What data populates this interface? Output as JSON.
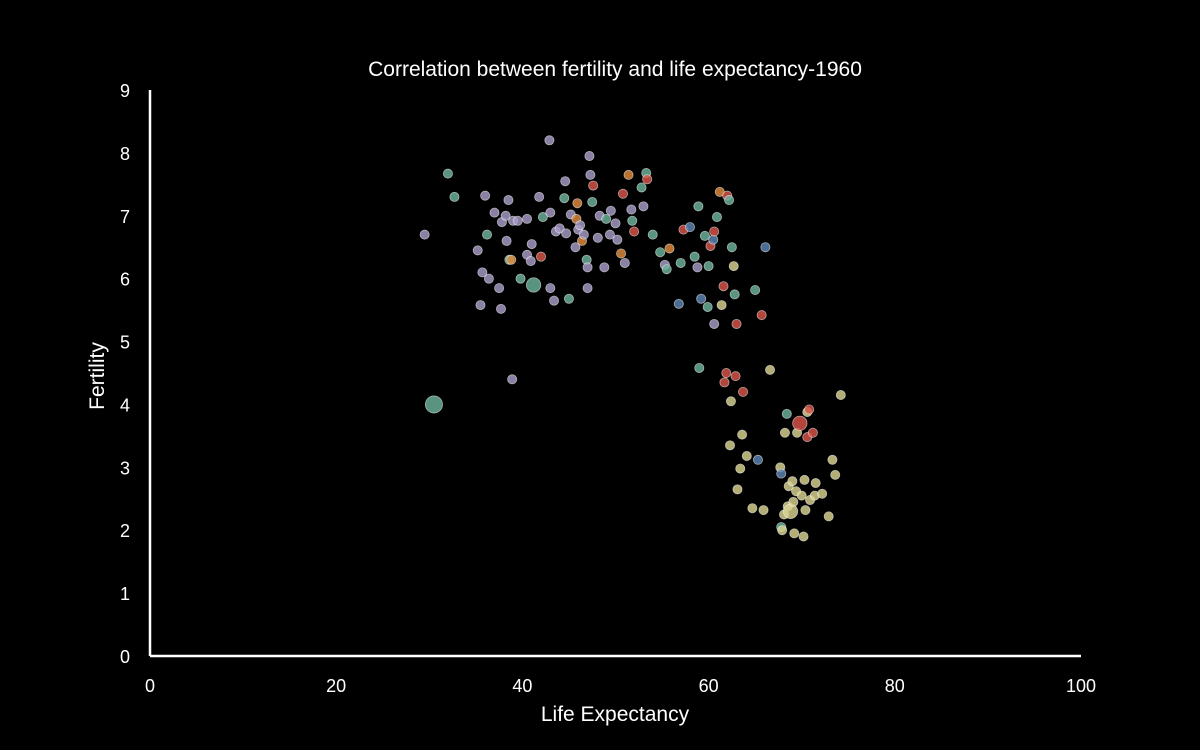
{
  "chart_data": {
    "type": "scatter",
    "title": "Correlation between fertility and life expectancy-1960",
    "xlabel": "Life Expectancy",
    "ylabel": "Fertility",
    "xlim": [
      0,
      100
    ],
    "ylim": [
      0,
      9
    ],
    "xticks": [
      "0",
      "20",
      "40",
      "60",
      "80",
      "100"
    ],
    "yticks": [
      "0",
      "1",
      "2",
      "3",
      "4",
      "5",
      "6",
      "7",
      "8",
      "9"
    ],
    "grid": false,
    "background": "#000000",
    "palette": {
      "purple": "#a89cc8",
      "teal": "#6cb59d",
      "red": "#d9564a",
      "orange": "#e08c3e",
      "yellow": "#d9d48f",
      "blue": "#5d86b5"
    },
    "points": [
      {
        "x": 29.5,
        "y": 6.7,
        "c": "purple",
        "s": 1
      },
      {
        "x": 30.5,
        "y": 4.0,
        "c": "teal",
        "s": 3
      },
      {
        "x": 32.0,
        "y": 7.67,
        "c": "teal",
        "s": 1
      },
      {
        "x": 32.7,
        "y": 7.3,
        "c": "teal",
        "s": 1
      },
      {
        "x": 35.2,
        "y": 6.45,
        "c": "purple",
        "s": 1
      },
      {
        "x": 35.5,
        "y": 5.58,
        "c": "purple",
        "s": 1
      },
      {
        "x": 35.7,
        "y": 6.1,
        "c": "purple",
        "s": 1
      },
      {
        "x": 36.0,
        "y": 7.32,
        "c": "purple",
        "s": 1
      },
      {
        "x": 36.2,
        "y": 6.7,
        "c": "teal",
        "s": 1
      },
      {
        "x": 36.4,
        "y": 6.0,
        "c": "purple",
        "s": 1
      },
      {
        "x": 37.0,
        "y": 7.05,
        "c": "purple",
        "s": 1
      },
      {
        "x": 37.5,
        "y": 5.85,
        "c": "purple",
        "s": 1
      },
      {
        "x": 37.7,
        "y": 5.52,
        "c": "purple",
        "s": 1
      },
      {
        "x": 37.8,
        "y": 6.9,
        "c": "purple",
        "s": 1
      },
      {
        "x": 38.2,
        "y": 7.0,
        "c": "purple",
        "s": 1
      },
      {
        "x": 38.3,
        "y": 6.6,
        "c": "purple",
        "s": 1
      },
      {
        "x": 38.5,
        "y": 7.25,
        "c": "purple",
        "s": 1
      },
      {
        "x": 38.6,
        "y": 6.3,
        "c": "teal",
        "s": 1
      },
      {
        "x": 38.8,
        "y": 6.3,
        "c": "orange",
        "s": 1
      },
      {
        "x": 38.9,
        "y": 4.4,
        "c": "purple",
        "s": 1
      },
      {
        "x": 39.0,
        "y": 6.92,
        "c": "purple",
        "s": 1
      },
      {
        "x": 39.5,
        "y": 6.92,
        "c": "purple",
        "s": 1
      },
      {
        "x": 39.8,
        "y": 6.0,
        "c": "teal",
        "s": 1
      },
      {
        "x": 40.5,
        "y": 6.38,
        "c": "purple",
        "s": 1
      },
      {
        "x": 40.5,
        "y": 6.95,
        "c": "purple",
        "s": 1
      },
      {
        "x": 40.9,
        "y": 6.28,
        "c": "purple",
        "s": 1
      },
      {
        "x": 41.0,
        "y": 6.55,
        "c": "purple",
        "s": 1
      },
      {
        "x": 41.2,
        "y": 5.9,
        "c": "teal",
        "s": 2
      },
      {
        "x": 41.8,
        "y": 7.3,
        "c": "purple",
        "s": 1
      },
      {
        "x": 42.0,
        "y": 6.35,
        "c": "red",
        "s": 1
      },
      {
        "x": 42.2,
        "y": 6.98,
        "c": "teal",
        "s": 1
      },
      {
        "x": 42.9,
        "y": 8.2,
        "c": "purple",
        "s": 1
      },
      {
        "x": 43.0,
        "y": 5.85,
        "c": "purple",
        "s": 1
      },
      {
        "x": 43.0,
        "y": 7.05,
        "c": "purple",
        "s": 1
      },
      {
        "x": 43.4,
        "y": 5.65,
        "c": "purple",
        "s": 1
      },
      {
        "x": 43.6,
        "y": 6.75,
        "c": "purple",
        "s": 1
      },
      {
        "x": 44.0,
        "y": 6.8,
        "c": "purple",
        "s": 1
      },
      {
        "x": 44.5,
        "y": 7.28,
        "c": "teal",
        "s": 1
      },
      {
        "x": 44.6,
        "y": 7.55,
        "c": "purple",
        "s": 1
      },
      {
        "x": 44.7,
        "y": 6.72,
        "c": "purple",
        "s": 1
      },
      {
        "x": 45.0,
        "y": 5.68,
        "c": "teal",
        "s": 1
      },
      {
        "x": 45.2,
        "y": 7.02,
        "c": "purple",
        "s": 1
      },
      {
        "x": 45.7,
        "y": 6.5,
        "c": "purple",
        "s": 1
      },
      {
        "x": 45.8,
        "y": 6.95,
        "c": "orange",
        "s": 1
      },
      {
        "x": 45.9,
        "y": 7.2,
        "c": "orange",
        "s": 1
      },
      {
        "x": 46.0,
        "y": 6.78,
        "c": "purple",
        "s": 1
      },
      {
        "x": 46.2,
        "y": 6.85,
        "c": "purple",
        "s": 1
      },
      {
        "x": 46.4,
        "y": 6.6,
        "c": "orange",
        "s": 1
      },
      {
        "x": 46.6,
        "y": 6.7,
        "c": "purple",
        "s": 1
      },
      {
        "x": 46.9,
        "y": 6.3,
        "c": "teal",
        "s": 1
      },
      {
        "x": 47.0,
        "y": 6.18,
        "c": "purple",
        "s": 1
      },
      {
        "x": 47.0,
        "y": 5.85,
        "c": "purple",
        "s": 1
      },
      {
        "x": 47.2,
        "y": 7.95,
        "c": "purple",
        "s": 1
      },
      {
        "x": 47.3,
        "y": 7.65,
        "c": "purple",
        "s": 1
      },
      {
        "x": 47.5,
        "y": 7.22,
        "c": "teal",
        "s": 1
      },
      {
        "x": 47.6,
        "y": 7.48,
        "c": "red",
        "s": 1
      },
      {
        "x": 48.1,
        "y": 6.65,
        "c": "purple",
        "s": 1
      },
      {
        "x": 48.3,
        "y": 7.0,
        "c": "purple",
        "s": 1
      },
      {
        "x": 48.8,
        "y": 6.18,
        "c": "purple",
        "s": 1
      },
      {
        "x": 49.0,
        "y": 6.95,
        "c": "teal",
        "s": 1
      },
      {
        "x": 49.4,
        "y": 6.7,
        "c": "purple",
        "s": 1
      },
      {
        "x": 49.5,
        "y": 7.08,
        "c": "purple",
        "s": 1
      },
      {
        "x": 50.0,
        "y": 6.88,
        "c": "purple",
        "s": 1
      },
      {
        "x": 50.2,
        "y": 6.62,
        "c": "purple",
        "s": 1
      },
      {
        "x": 50.6,
        "y": 6.4,
        "c": "orange",
        "s": 1
      },
      {
        "x": 50.8,
        "y": 7.35,
        "c": "red",
        "s": 1
      },
      {
        "x": 51.0,
        "y": 6.25,
        "c": "purple",
        "s": 1
      },
      {
        "x": 51.4,
        "y": 7.65,
        "c": "orange",
        "s": 1
      },
      {
        "x": 51.7,
        "y": 7.1,
        "c": "purple",
        "s": 1
      },
      {
        "x": 51.8,
        "y": 6.92,
        "c": "teal",
        "s": 1
      },
      {
        "x": 52.0,
        "y": 6.75,
        "c": "red",
        "s": 1
      },
      {
        "x": 52.8,
        "y": 7.45,
        "c": "teal",
        "s": 1
      },
      {
        "x": 53.0,
        "y": 7.15,
        "c": "purple",
        "s": 1
      },
      {
        "x": 53.3,
        "y": 7.68,
        "c": "teal",
        "s": 1
      },
      {
        "x": 53.4,
        "y": 7.58,
        "c": "red",
        "s": 1
      },
      {
        "x": 54.0,
        "y": 6.7,
        "c": "teal",
        "s": 1
      },
      {
        "x": 54.8,
        "y": 6.42,
        "c": "teal",
        "s": 1
      },
      {
        "x": 55.3,
        "y": 6.22,
        "c": "purple",
        "s": 1
      },
      {
        "x": 55.5,
        "y": 6.15,
        "c": "teal",
        "s": 1
      },
      {
        "x": 55.8,
        "y": 6.48,
        "c": "orange",
        "s": 1
      },
      {
        "x": 56.8,
        "y": 5.6,
        "c": "blue",
        "s": 1
      },
      {
        "x": 57.0,
        "y": 6.25,
        "c": "teal",
        "s": 1
      },
      {
        "x": 57.3,
        "y": 6.78,
        "c": "red",
        "s": 1
      },
      {
        "x": 58.0,
        "y": 6.82,
        "c": "blue",
        "s": 1
      },
      {
        "x": 58.5,
        "y": 6.35,
        "c": "teal",
        "s": 1
      },
      {
        "x": 58.8,
        "y": 6.18,
        "c": "purple",
        "s": 1
      },
      {
        "x": 58.9,
        "y": 7.15,
        "c": "teal",
        "s": 1
      },
      {
        "x": 59.0,
        "y": 4.58,
        "c": "teal",
        "s": 1
      },
      {
        "x": 59.2,
        "y": 5.68,
        "c": "blue",
        "s": 1
      },
      {
        "x": 59.6,
        "y": 6.68,
        "c": "teal",
        "s": 1
      },
      {
        "x": 59.9,
        "y": 5.55,
        "c": "teal",
        "s": 1
      },
      {
        "x": 60.0,
        "y": 6.2,
        "c": "teal",
        "s": 1
      },
      {
        "x": 60.2,
        "y": 6.52,
        "c": "red",
        "s": 1
      },
      {
        "x": 60.5,
        "y": 6.62,
        "c": "blue",
        "s": 1
      },
      {
        "x": 60.6,
        "y": 5.28,
        "c": "purple",
        "s": 1
      },
      {
        "x": 60.6,
        "y": 6.75,
        "c": "red",
        "s": 1
      },
      {
        "x": 60.9,
        "y": 6.98,
        "c": "teal",
        "s": 1
      },
      {
        "x": 61.2,
        "y": 7.38,
        "c": "orange",
        "s": 1
      },
      {
        "x": 61.4,
        "y": 5.58,
        "c": "yellow",
        "s": 1
      },
      {
        "x": 61.6,
        "y": 5.88,
        "c": "red",
        "s": 1
      },
      {
        "x": 61.7,
        "y": 4.35,
        "c": "red",
        "s": 1
      },
      {
        "x": 61.9,
        "y": 4.5,
        "c": "red",
        "s": 1
      },
      {
        "x": 62.0,
        "y": 7.32,
        "c": "red",
        "s": 1
      },
      {
        "x": 62.2,
        "y": 7.25,
        "c": "teal",
        "s": 1
      },
      {
        "x": 62.3,
        "y": 3.35,
        "c": "yellow",
        "s": 1
      },
      {
        "x": 62.4,
        "y": 4.05,
        "c": "yellow",
        "s": 1
      },
      {
        "x": 62.5,
        "y": 6.5,
        "c": "teal",
        "s": 1
      },
      {
        "x": 62.7,
        "y": 6.2,
        "c": "yellow",
        "s": 1
      },
      {
        "x": 62.8,
        "y": 5.75,
        "c": "teal",
        "s": 1
      },
      {
        "x": 62.9,
        "y": 4.45,
        "c": "red",
        "s": 1
      },
      {
        "x": 63.0,
        "y": 5.28,
        "c": "red",
        "s": 1
      },
      {
        "x": 63.1,
        "y": 2.65,
        "c": "yellow",
        "s": 1
      },
      {
        "x": 63.4,
        "y": 2.98,
        "c": "yellow",
        "s": 1
      },
      {
        "x": 63.6,
        "y": 3.52,
        "c": "yellow",
        "s": 1
      },
      {
        "x": 63.7,
        "y": 4.2,
        "c": "red",
        "s": 1
      },
      {
        "x": 64.1,
        "y": 3.18,
        "c": "yellow",
        "s": 1
      },
      {
        "x": 64.7,
        "y": 2.35,
        "c": "yellow",
        "s": 1
      },
      {
        "x": 65.0,
        "y": 5.82,
        "c": "teal",
        "s": 1
      },
      {
        "x": 65.3,
        "y": 3.12,
        "c": "blue",
        "s": 1
      },
      {
        "x": 65.7,
        "y": 5.42,
        "c": "red",
        "s": 1
      },
      {
        "x": 65.9,
        "y": 2.32,
        "c": "yellow",
        "s": 1
      },
      {
        "x": 66.1,
        "y": 6.5,
        "c": "blue",
        "s": 1
      },
      {
        "x": 66.6,
        "y": 4.55,
        "c": "yellow",
        "s": 1
      },
      {
        "x": 67.7,
        "y": 3.0,
        "c": "yellow",
        "s": 1
      },
      {
        "x": 67.8,
        "y": 2.05,
        "c": "teal",
        "s": 1
      },
      {
        "x": 67.8,
        "y": 2.9,
        "c": "blue",
        "s": 1
      },
      {
        "x": 67.9,
        "y": 2.0,
        "c": "yellow",
        "s": 1
      },
      {
        "x": 68.1,
        "y": 2.25,
        "c": "yellow",
        "s": 1
      },
      {
        "x": 68.2,
        "y": 3.55,
        "c": "yellow",
        "s": 1
      },
      {
        "x": 68.4,
        "y": 3.85,
        "c": "teal",
        "s": 1
      },
      {
        "x": 68.5,
        "y": 2.38,
        "c": "yellow",
        "s": 1
      },
      {
        "x": 68.6,
        "y": 2.7,
        "c": "yellow",
        "s": 1
      },
      {
        "x": 68.8,
        "y": 2.3,
        "c": "yellow",
        "s": 2
      },
      {
        "x": 69.0,
        "y": 2.78,
        "c": "yellow",
        "s": 1
      },
      {
        "x": 69.1,
        "y": 2.45,
        "c": "yellow",
        "s": 1
      },
      {
        "x": 69.2,
        "y": 1.95,
        "c": "yellow",
        "s": 1
      },
      {
        "x": 69.4,
        "y": 2.62,
        "c": "yellow",
        "s": 1
      },
      {
        "x": 69.5,
        "y": 3.55,
        "c": "yellow",
        "s": 1
      },
      {
        "x": 69.8,
        "y": 3.7,
        "c": "red",
        "s": 2
      },
      {
        "x": 70.0,
        "y": 2.55,
        "c": "yellow",
        "s": 1
      },
      {
        "x": 70.2,
        "y": 1.9,
        "c": "yellow",
        "s": 1
      },
      {
        "x": 70.3,
        "y": 2.8,
        "c": "yellow",
        "s": 1
      },
      {
        "x": 70.4,
        "y": 2.32,
        "c": "yellow",
        "s": 1
      },
      {
        "x": 70.6,
        "y": 3.48,
        "c": "red",
        "s": 1
      },
      {
        "x": 70.6,
        "y": 3.88,
        "c": "yellow",
        "s": 1
      },
      {
        "x": 70.8,
        "y": 3.92,
        "c": "red",
        "s": 1
      },
      {
        "x": 70.9,
        "y": 2.48,
        "c": "yellow",
        "s": 1
      },
      {
        "x": 71.2,
        "y": 3.55,
        "c": "red",
        "s": 1
      },
      {
        "x": 71.4,
        "y": 2.55,
        "c": "yellow",
        "s": 1
      },
      {
        "x": 71.5,
        "y": 2.75,
        "c": "yellow",
        "s": 1
      },
      {
        "x": 72.2,
        "y": 2.58,
        "c": "yellow",
        "s": 1
      },
      {
        "x": 72.9,
        "y": 2.22,
        "c": "yellow",
        "s": 1
      },
      {
        "x": 73.3,
        "y": 3.12,
        "c": "yellow",
        "s": 1
      },
      {
        "x": 73.6,
        "y": 2.88,
        "c": "yellow",
        "s": 1
      },
      {
        "x": 74.2,
        "y": 4.15,
        "c": "yellow",
        "s": 1
      }
    ]
  }
}
